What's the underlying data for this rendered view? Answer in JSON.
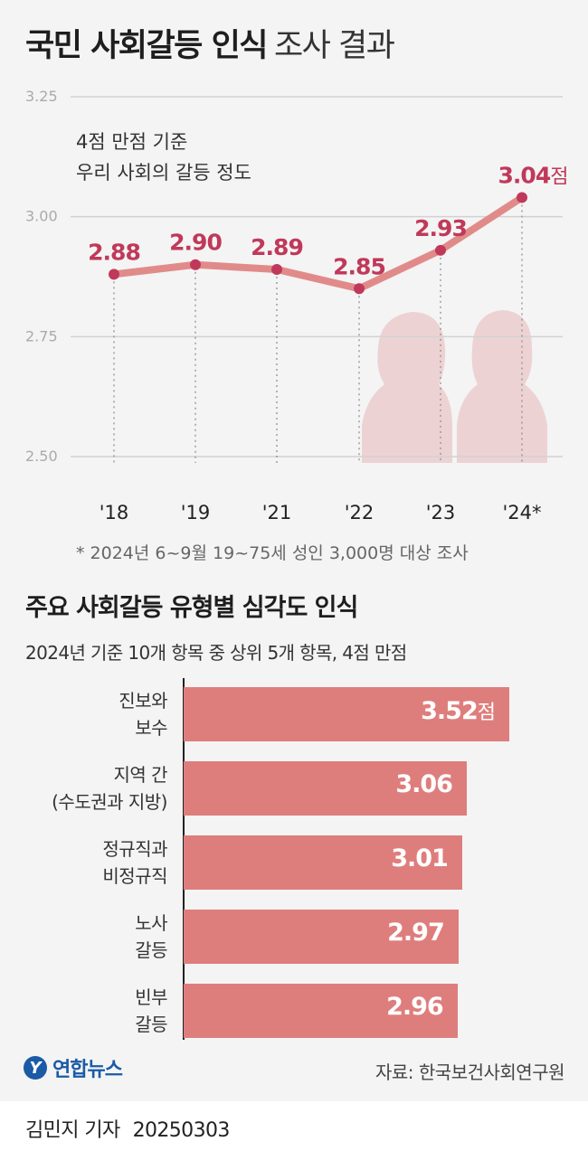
{
  "header": {
    "title_main": "국민 사회갈등 인식",
    "title_sub": "조사 결과"
  },
  "chart_data": [
    {
      "type": "line",
      "annotation": [
        "4점 만점 기준",
        "우리 사회의 갈등 정도"
      ],
      "categories": [
        "'18",
        "'19",
        "'21",
        "'22",
        "'23",
        "'24*"
      ],
      "values": [
        2.88,
        2.9,
        2.89,
        2.85,
        2.93,
        3.04
      ],
      "value_labels": [
        "2.88",
        "2.90",
        "2.89",
        "2.85",
        "2.93",
        "3.04"
      ],
      "last_value_unit": "점",
      "yticks": [
        "3.25",
        "3.00",
        "2.75",
        "2.50"
      ],
      "ylim": [
        2.5,
        3.25
      ],
      "grid": true,
      "footnote": "* 2024년 6~9월 19~75세 성인 3,000명 대상 조사",
      "colors": {
        "line": "#e08b8a",
        "point": "#c0395a",
        "label": "#c0395a",
        "silhouette": "#edd2d4"
      }
    },
    {
      "type": "bar",
      "title": "주요 사회갈등 유형별 심각도 인식",
      "subtitle": "2024년 기준 10개 항목 중 상위 5개 항목, 4점 만점",
      "categories": [
        [
          "진보와",
          "보수"
        ],
        [
          "지역 간",
          "(수도권과 지방)"
        ],
        [
          "정규직과",
          "비정규직"
        ],
        [
          "노사",
          "갈등"
        ],
        [
          "빈부",
          "갈등"
        ]
      ],
      "values": [
        3.52,
        3.06,
        3.01,
        2.97,
        2.96
      ],
      "value_labels": [
        "3.52",
        "3.06",
        "3.01",
        "2.97",
        "2.96"
      ],
      "first_value_unit": "점",
      "colors": {
        "bar": "#de7e7c"
      }
    }
  ],
  "footer": {
    "logo_text": "연합뉴스",
    "source": "자료: 한국보건사회연구원",
    "reporter": "김민지 기자",
    "date": "20250303"
  }
}
